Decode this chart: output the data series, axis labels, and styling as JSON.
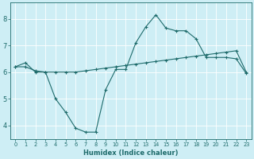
{
  "xlabel": "Humidex (Indice chaleur)",
  "background_color": "#ceeef5",
  "line_color": "#1e6b6b",
  "grid_color": "#ffffff",
  "xlim": [
    -0.5,
    23.5
  ],
  "ylim": [
    3.5,
    8.6
  ],
  "yticks": [
    4,
    5,
    6,
    7,
    8
  ],
  "xticks": [
    0,
    1,
    2,
    3,
    4,
    5,
    6,
    7,
    8,
    9,
    10,
    11,
    12,
    13,
    14,
    15,
    16,
    17,
    18,
    19,
    20,
    21,
    22,
    23
  ],
  "series1_x": [
    0,
    1,
    2,
    3,
    4,
    5,
    6,
    7,
    8,
    9,
    10,
    11,
    12,
    13,
    14,
    15,
    16,
    17,
    18,
    19,
    20,
    21,
    22,
    23
  ],
  "series1_y": [
    6.2,
    6.35,
    6.0,
    6.0,
    5.0,
    4.5,
    3.9,
    3.75,
    3.75,
    5.35,
    6.1,
    6.1,
    7.1,
    7.7,
    8.15,
    7.65,
    7.55,
    7.55,
    7.25,
    6.55,
    6.55,
    6.55,
    6.5,
    5.95
  ],
  "series2_x": [
    0,
    1,
    2,
    3,
    4,
    5,
    6,
    7,
    8,
    9,
    10,
    11,
    12,
    13,
    14,
    15,
    16,
    17,
    18,
    19,
    20,
    21,
    22,
    23
  ],
  "series2_y": [
    6.2,
    6.2,
    6.05,
    6.0,
    6.0,
    6.0,
    6.0,
    6.05,
    6.1,
    6.15,
    6.2,
    6.25,
    6.3,
    6.35,
    6.4,
    6.45,
    6.5,
    6.55,
    6.6,
    6.65,
    6.7,
    6.75,
    6.8,
    6.0
  ]
}
